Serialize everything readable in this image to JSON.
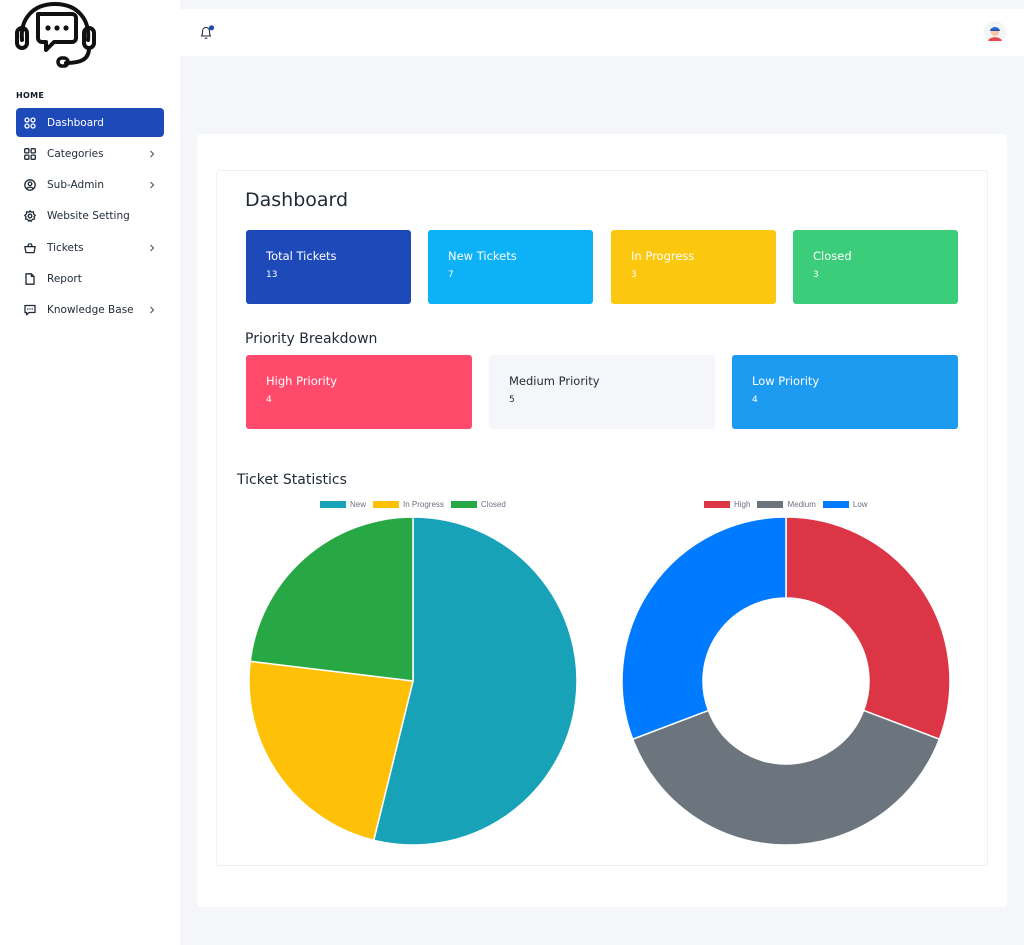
{
  "sidebar": {
    "heading": "HOME",
    "items": [
      {
        "label": "Dashboard",
        "icon": "dashboard-icon",
        "active": true,
        "chevron": false
      },
      {
        "label": "Categories",
        "icon": "grid-icon",
        "active": false,
        "chevron": true
      },
      {
        "label": "Sub-Admin",
        "icon": "user-circle-icon",
        "active": false,
        "chevron": true
      },
      {
        "label": "Website Setting",
        "icon": "gear-icon",
        "active": false,
        "chevron": false
      },
      {
        "label": "Tickets",
        "icon": "basket-icon",
        "active": false,
        "chevron": true
      },
      {
        "label": "Report",
        "icon": "document-icon",
        "active": false,
        "chevron": false
      },
      {
        "label": "Knowledge Base",
        "icon": "chat-icon",
        "active": false,
        "chevron": true
      }
    ]
  },
  "main": {
    "title": "Dashboard",
    "stats": [
      {
        "label": "Total Tickets",
        "value": "13",
        "bg": "#1e49b9",
        "fg": "#ffffff"
      },
      {
        "label": "New Tickets",
        "value": "7",
        "bg": "#0db1f5",
        "fg": "#ffffff"
      },
      {
        "label": "In Progress",
        "value": "3",
        "bg": "#fbc80f",
        "fg": "#ffffff"
      },
      {
        "label": "Closed",
        "value": "3",
        "bg": "#3ccd7a",
        "fg": "#ffffff"
      }
    ],
    "priority_title": "Priority Breakdown",
    "priorities": [
      {
        "label": "High Priority",
        "value": "4",
        "bg": "#ff4a6b",
        "fg": "#ffffff"
      },
      {
        "label": "Medium Priority",
        "value": "5",
        "bg": "#f5f6f9",
        "fg": "#1f2937"
      },
      {
        "label": "Low Priority",
        "value": "4",
        "bg": "#1d9bf0",
        "fg": "#ffffff"
      }
    ],
    "stats_title": "Ticket Statistics"
  },
  "chart_data": [
    {
      "type": "pie",
      "categories": [
        "New",
        "In Progress",
        "Closed"
      ],
      "values": [
        7,
        3,
        3
      ],
      "colors": [
        "#17a2b8",
        "#ffc107",
        "#28a745"
      ],
      "legend": "top"
    },
    {
      "type": "doughnut",
      "categories": [
        "High",
        "Medium",
        "Low"
      ],
      "values": [
        4,
        5,
        4
      ],
      "colors": [
        "#dc3545",
        "#6c757d",
        "#007bff"
      ],
      "legend": "top"
    }
  ]
}
